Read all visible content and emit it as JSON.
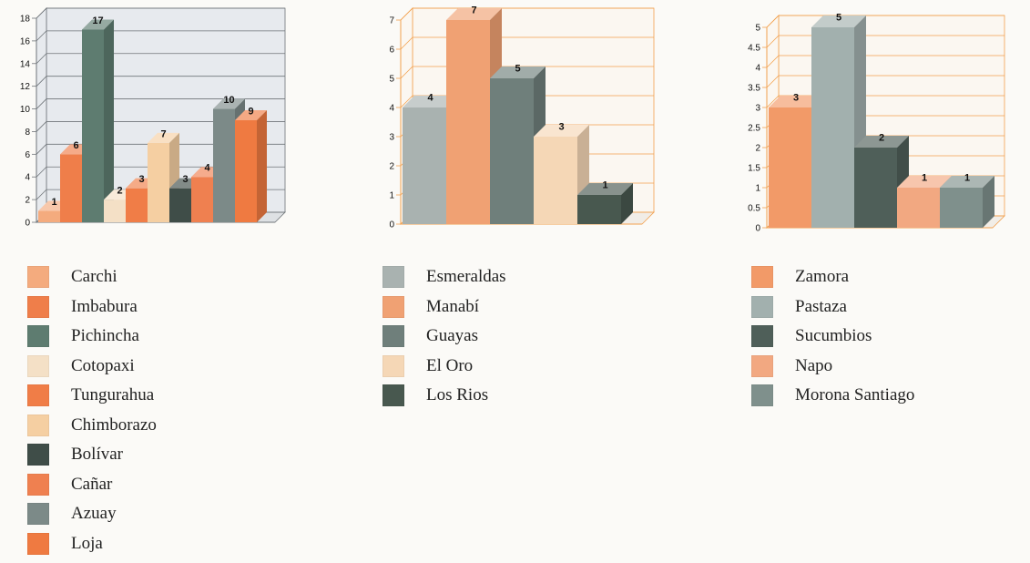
{
  "chart_data": [
    {
      "type": "bar",
      "ylim": [
        0,
        18
      ],
      "grid": true,
      "categories": [
        "Carchi",
        "Imbabura",
        "Pichincha",
        "Cotopaxi",
        "Tungurahua",
        "Chimborazo",
        "Bolívar",
        "Cañar",
        "Azuay",
        "Loja"
      ],
      "values": [
        1,
        6,
        17,
        2,
        3,
        7,
        3,
        4,
        10,
        9
      ],
      "colors": [
        "#f4ab7e",
        "#ef7e4a",
        "#5e7c70",
        "#f4e0c6",
        "#f07d47",
        "#f5cfa2",
        "#3f4d48",
        "#ef8050",
        "#7c8a88",
        "#ef7a41"
      ],
      "y_ticks": [
        "0",
        "2",
        "4",
        "6",
        "8",
        "10",
        "12",
        "14",
        "16",
        "18"
      ],
      "legend_position": "below"
    },
    {
      "type": "bar",
      "ylim": [
        0,
        7
      ],
      "grid": true,
      "categories": [
        "Esmeraldas",
        "Manabí",
        "Guayas",
        "El Oro",
        "Los Rios"
      ],
      "values": [
        4,
        7,
        5,
        3,
        1
      ],
      "colors": [
        "#a9b2b0",
        "#f0a173",
        "#6f7f7b",
        "#f5d7b6",
        "#48584f"
      ],
      "y_ticks": [
        "0",
        "1",
        "2",
        "3",
        "4",
        "5",
        "6",
        "7"
      ],
      "legend_position": "below"
    },
    {
      "type": "bar",
      "ylim": [
        0,
        5
      ],
      "grid": true,
      "categories": [
        "Zamora",
        "Pastaza",
        "Sucumbios",
        "Napo",
        "Morona Santiago"
      ],
      "values": [
        3,
        5,
        2,
        1,
        1
      ],
      "colors": [
        "#f29a68",
        "#a2b0ae",
        "#4f5f59",
        "#f2a881",
        "#7f908c"
      ],
      "y_ticks": [
        "0",
        "0.5",
        "1",
        "1.5",
        "2",
        "2.5",
        "3",
        "3.5",
        "4",
        "4.5",
        "5"
      ],
      "legend_position": "below"
    }
  ]
}
